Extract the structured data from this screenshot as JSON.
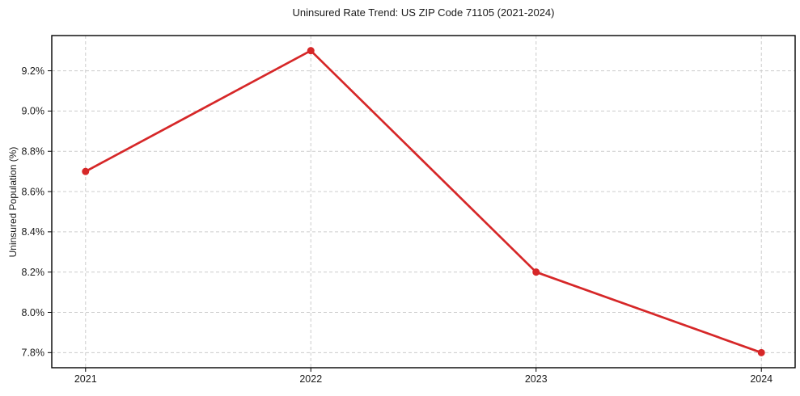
{
  "chart_data": {
    "type": "line",
    "title": "Uninsured Rate Trend: US ZIP Code 71105 (2021-2024)",
    "xlabel": "",
    "ylabel": "Uninsured Population (%)",
    "x": [
      2021,
      2022,
      2023,
      2024
    ],
    "x_tick_labels": [
      "2021",
      "2022",
      "2023",
      "2024"
    ],
    "series": [
      {
        "name": "Uninsured Rate",
        "values": [
          8.7,
          9.3,
          8.2,
          7.8
        ],
        "color": "#d62728"
      }
    ],
    "y_ticks": [
      7.8,
      8.0,
      8.2,
      8.4,
      8.6,
      8.8,
      9.0,
      9.2
    ],
    "y_tick_labels": [
      "7.8%",
      "8.0%",
      "8.2%",
      "8.4%",
      "8.6%",
      "8.8%",
      "9.0%",
      "9.2%"
    ],
    "xlim": [
      2020.85,
      2024.15
    ],
    "ylim": [
      7.725,
      9.375
    ],
    "grid": true,
    "grid_color": "#cccccc",
    "grid_dash": "4 3",
    "spine_color": "#000000",
    "tick_color": "#000000",
    "line_width": 2.7,
    "marker_radius": 4.5,
    "legend": "none"
  }
}
